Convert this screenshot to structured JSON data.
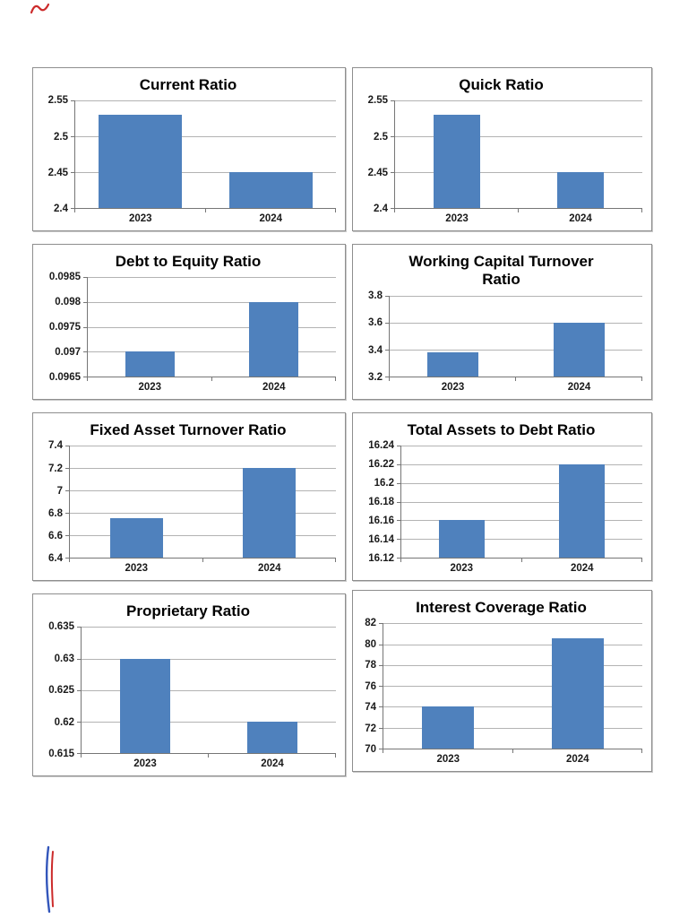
{
  "page": {
    "background": "#ffffff"
  },
  "colors": {
    "bar": "#4f81bd",
    "gridline": "#b3b3b3",
    "axis": "#767676",
    "box_border": "#8e8e8e",
    "title_text": "#000000",
    "tick_text": "#1a1a1a",
    "pen_red": "#cc2b2b",
    "pen_blue": "#3356bb"
  },
  "chart_data": [
    {
      "type": "bar",
      "title": "Current Ratio",
      "categories": [
        "2023",
        "2024"
      ],
      "values": [
        2.53,
        2.45
      ],
      "ylim": [
        2.4,
        2.55
      ],
      "yticks": [
        "2.55",
        "2.5",
        "2.45",
        "2.4"
      ],
      "grid": true,
      "legend": "none",
      "bar_width_pct": 32
    },
    {
      "type": "bar",
      "title": "Quick Ratio",
      "categories": [
        "2023",
        "2024"
      ],
      "values": [
        2.53,
        2.45
      ],
      "ylim": [
        2.4,
        2.55
      ],
      "yticks": [
        "2.55",
        "2.5",
        "2.45",
        "2.4"
      ],
      "grid": true,
      "legend": "none",
      "bar_width_pct": 19
    },
    {
      "type": "bar",
      "title": "Debt to Equity Ratio",
      "categories": [
        "2023",
        "2024"
      ],
      "values": [
        0.097,
        0.098
      ],
      "ylim": [
        0.0965,
        0.0985
      ],
      "yticks": [
        "0.0985",
        "0.098",
        "0.0975",
        "0.097",
        "0.0965"
      ],
      "grid": true,
      "legend": "none",
      "bar_width_pct": 20
    },
    {
      "type": "bar",
      "title": "Working Capital Turnover Ratio",
      "categories": [
        "2023",
        "2024"
      ],
      "values": [
        3.38,
        3.6
      ],
      "ylim": [
        3.2,
        3.8
      ],
      "yticks": [
        "3.8",
        "3.6",
        "3.4",
        "3.2"
      ],
      "grid": true,
      "legend": "none",
      "bar_width_pct": 20
    },
    {
      "type": "bar",
      "title": "Fixed Asset Turnover Ratio",
      "categories": [
        "2023",
        "2024"
      ],
      "values": [
        6.75,
        7.2
      ],
      "ylim": [
        6.4,
        7.4
      ],
      "yticks": [
        "7.4",
        "7.2",
        "7",
        "6.8",
        "6.6",
        "6.4"
      ],
      "grid": true,
      "legend": "none",
      "bar_width_pct": 20
    },
    {
      "type": "bar",
      "title": "Total Assets to Debt Ratio",
      "categories": [
        "2023",
        "2024"
      ],
      "values": [
        16.16,
        16.22
      ],
      "ylim": [
        16.12,
        16.24
      ],
      "yticks": [
        "16.24",
        "16.22",
        "16.2",
        "16.18",
        "16.16",
        "16.14",
        "16.12"
      ],
      "grid": true,
      "legend": "none",
      "bar_width_pct": 19
    },
    {
      "type": "bar",
      "title": "Proprietary Ratio",
      "categories": [
        "2023",
        "2024"
      ],
      "values": [
        0.63,
        0.62
      ],
      "ylim": [
        0.615,
        0.635
      ],
      "yticks": [
        "0.635",
        "0.63",
        "0.625",
        "0.62",
        "0.615"
      ],
      "grid": true,
      "legend": "none",
      "bar_width_pct": 20
    },
    {
      "type": "bar",
      "title": "Interest Coverage Ratio",
      "categories": [
        "2023",
        "2024"
      ],
      "values": [
        74,
        80.6
      ],
      "ylim": [
        70,
        82
      ],
      "yticks": [
        "82",
        "80",
        "78",
        "76",
        "74",
        "72",
        "70"
      ],
      "grid": true,
      "legend": "none",
      "bar_width_pct": 20
    }
  ]
}
